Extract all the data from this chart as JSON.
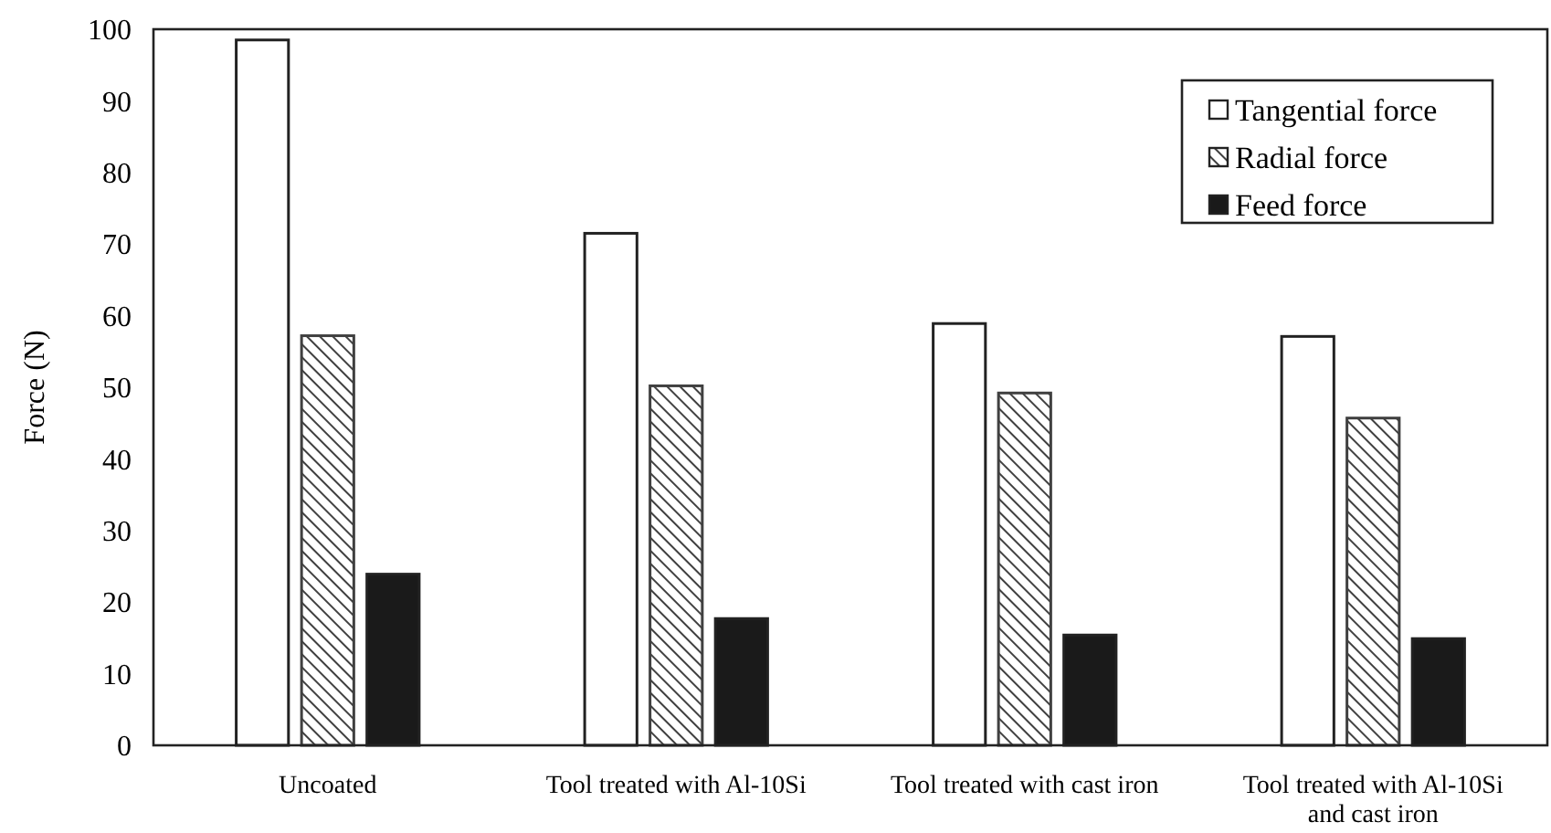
{
  "chart_data": {
    "type": "bar",
    "ylabel": "Force (N)",
    "categories": [
      "Uncoated",
      "Tool treated with Al-10Si",
      "Tool treated with cast iron",
      "Tool treated with Al-10Si and cast iron"
    ],
    "series": [
      {
        "name": "Tangential force",
        "color": "#ffffff",
        "values": [
          98.5,
          71.5,
          58.9,
          57.1
        ]
      },
      {
        "name": "Radial force",
        "color": "#404040",
        "values": [
          57.2,
          50.2,
          49.2,
          45.7
        ]
      },
      {
        "name": "Feed force",
        "color": "#1a1a1a",
        "values": [
          23.9,
          17.7,
          15.4,
          14.9
        ]
      }
    ],
    "ylim": [
      0,
      100
    ],
    "yticks": [
      0,
      10,
      20,
      30,
      40,
      50,
      60,
      70,
      80,
      90,
      100
    ],
    "grid": false,
    "legend": "top right"
  }
}
